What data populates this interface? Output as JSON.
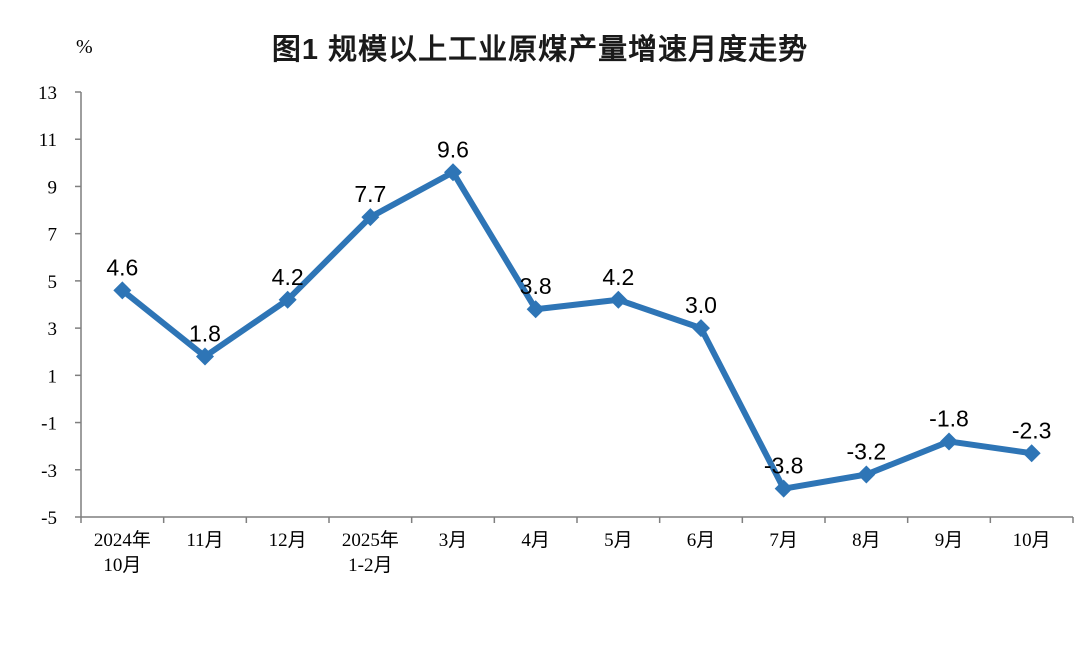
{
  "chart_data": {
    "type": "line",
    "title": "图1  规模以上工业原煤产量增速月度走势",
    "unit_label": "%",
    "categories": [
      "2024年\n10月",
      "11月",
      "12月",
      "2025年\n1-2月",
      "3月",
      "4月",
      "5月",
      "6月",
      "7月",
      "8月",
      "9月",
      "10月"
    ],
    "series": [
      {
        "name": "规模以上工业原煤产量增速",
        "values": [
          4.6,
          1.8,
          4.2,
          7.7,
          9.6,
          3.8,
          4.2,
          3.0,
          -3.8,
          -3.2,
          -1.8,
          -2.3
        ],
        "labels": [
          "4.6",
          "1.8",
          "4.2",
          "7.7",
          "9.6",
          "3.8",
          "4.2",
          "3.0",
          "-3.8",
          "-3.2",
          "-1.8",
          "-2.3"
        ]
      }
    ],
    "y_ticks": [
      13,
      11,
      9,
      7,
      5,
      3,
      1,
      -1,
      -3,
      -5
    ],
    "ylim": [
      -5,
      13
    ],
    "xlabel": "",
    "ylabel": "%",
    "grid": false,
    "legend_position": "none",
    "line_color": "#2E75B6",
    "marker_shape": "diamond",
    "axis_color": "#7F7F7F",
    "label_color": "#000000",
    "background_color": "#FFFFFF"
  }
}
